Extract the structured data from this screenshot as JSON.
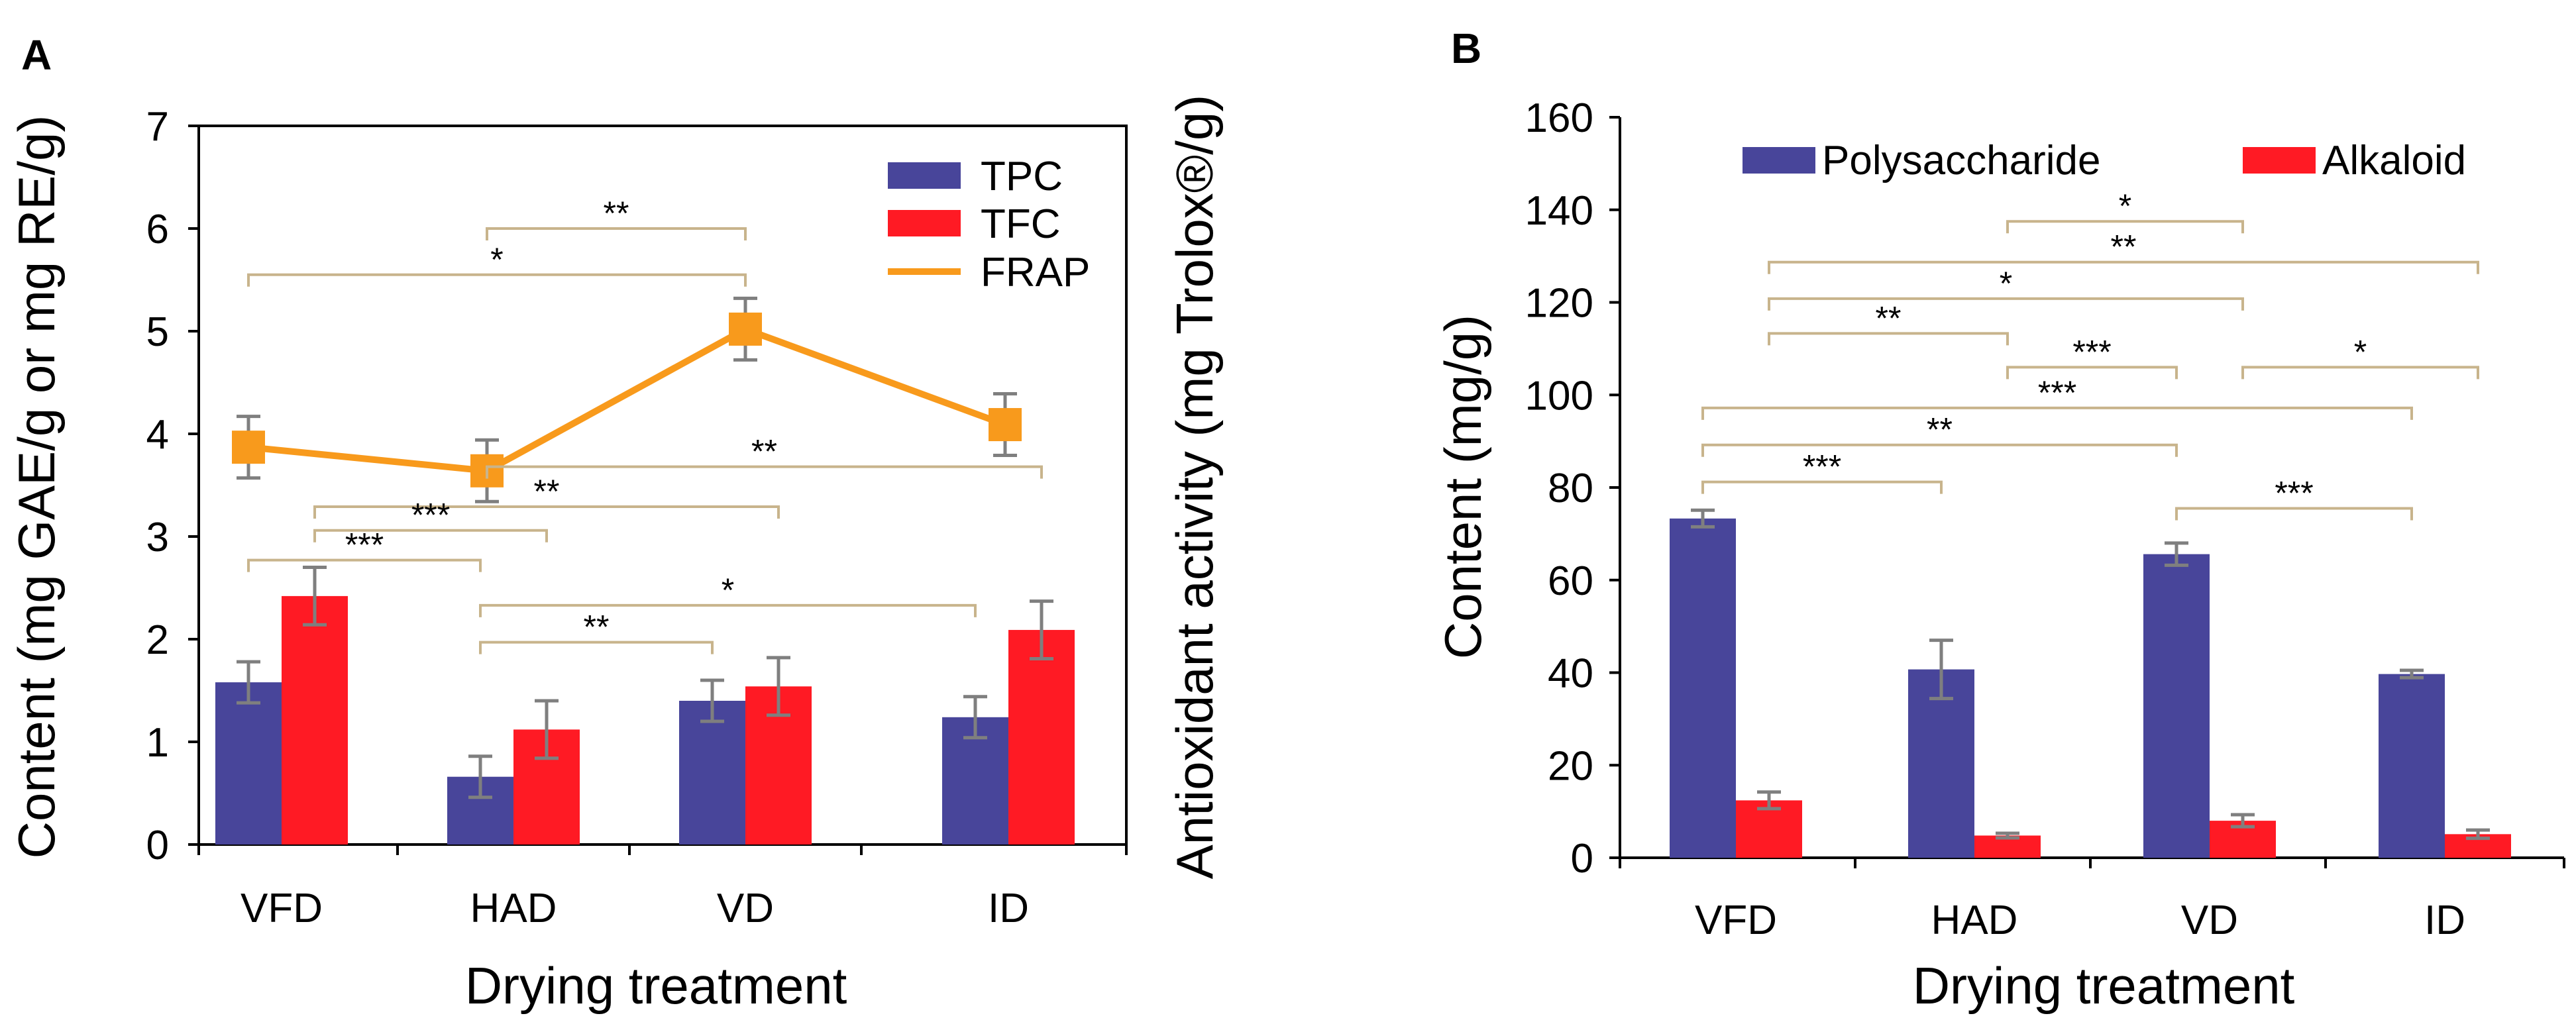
{
  "panel_a_letter": "A",
  "panel_b_letter": "B",
  "chart_data": [
    {
      "type": "bar",
      "panel": "A",
      "categories": [
        "VFD",
        "HAD",
        "VD",
        "ID"
      ],
      "xlabel": "Drying treatment",
      "ylabel": "Content (mg GAE/g or mg RE/g)",
      "y2label": "Antioxidant activity (mg Trolox®/g)",
      "ylim": [
        0,
        7
      ],
      "yticks": [
        "0",
        "1",
        "2",
        "3",
        "4",
        "5",
        "6",
        "7"
      ],
      "series": [
        {
          "name": "TPC",
          "kind": "bar",
          "color": "#48459a",
          "values": [
            1.58,
            0.66,
            1.4,
            1.24
          ],
          "errors": [
            0.2,
            0.2,
            0.2,
            0.2
          ]
        },
        {
          "name": "TFC",
          "kind": "bar",
          "color": "#ff1a24",
          "values": [
            2.42,
            1.12,
            1.54,
            2.09
          ],
          "errors": [
            0.28,
            0.28,
            0.28,
            0.28
          ]
        },
        {
          "name": "FRAP",
          "kind": "line",
          "color": "#f89a1c",
          "values": [
            3.87,
            3.64,
            5.02,
            4.09
          ],
          "errors": [
            0.3,
            0.3,
            0.3,
            0.3
          ]
        }
      ],
      "significance": [
        {
          "label": "**",
          "from": "HAD-FRAP",
          "to": "VD-FRAP",
          "level": 6.0
        },
        {
          "label": "*",
          "from": "VFD-FRAP",
          "to": "VD-FRAP",
          "level": 5.55
        },
        {
          "label": "**",
          "from": "HAD-FRAP",
          "to": "ID-TFC",
          "level": 3.68
        },
        {
          "label": "**",
          "from": "VFD-TFC",
          "to": "VD-TFC",
          "level": 3.29
        },
        {
          "label": "***",
          "from": "VFD-TFC",
          "to": "HAD-TFC",
          "level": 3.06
        },
        {
          "label": "***",
          "from": "VFD-TPC",
          "to": "HAD-TPC",
          "level": 2.77
        },
        {
          "label": "*",
          "from": "HAD-TPC",
          "to": "ID-TPC",
          "level": 2.33
        },
        {
          "label": "**",
          "from": "HAD-TPC",
          "to": "VD-TPC",
          "level": 1.97
        }
      ]
    },
    {
      "type": "bar",
      "panel": "B",
      "categories": [
        "VFD",
        "HAD",
        "VD",
        "ID"
      ],
      "xlabel": "Drying treatment",
      "ylabel": "Content (mg/g)",
      "ylim": [
        0,
        160
      ],
      "yticks": [
        "0",
        "20",
        "40",
        "60",
        "80",
        "100",
        "120",
        "140",
        "160"
      ],
      "series": [
        {
          "name": "Polysaccharide",
          "color": "#48459a",
          "values": [
            73.3,
            40.7,
            65.6,
            39.7
          ],
          "errors": [
            1.8,
            6.3,
            2.4,
            0.8
          ]
        },
        {
          "name": "Alkaloid",
          "color": "#ff1a24",
          "values": [
            12.4,
            4.8,
            8.0,
            5.1
          ],
          "errors": [
            1.8,
            0.5,
            1.3,
            0.9
          ]
        }
      ],
      "significance": [
        {
          "label": "*",
          "from": "HAD-Alkaloid",
          "to": "VD-Alkaloid",
          "level": 137.5
        },
        {
          "label": "**",
          "from": "VFD-Alkaloid",
          "to": "ID-Alkaloid",
          "level": 128.7
        },
        {
          "label": "*",
          "from": "VFD-Alkaloid",
          "to": "VD-Alkaloid",
          "level": 120.8
        },
        {
          "label": "**",
          "from": "VFD-Alkaloid",
          "to": "HAD-Alkaloid",
          "level": 113.3
        },
        {
          "label": "***",
          "from": "HAD-Alkaloid",
          "to": "VD-Polysaccharide",
          "level": 106.0
        },
        {
          "label": "*",
          "from": "VD-Alkaloid",
          "to": "ID-Alkaloid",
          "level": 106.0
        },
        {
          "label": "***",
          "from": "VFD-Polysaccharide",
          "to": "ID-Polysaccharide",
          "level": 97.2
        },
        {
          "label": "**",
          "from": "VFD-Polysaccharide",
          "to": "VD-Polysaccharide",
          "level": 89.2
        },
        {
          "label": "***",
          "from": "VFD-Polysaccharide",
          "to": "HAD-Polysaccharide",
          "level": 81.2
        },
        {
          "label": "***",
          "from": "VD-Polysaccharide",
          "to": "ID-Polysaccharide",
          "level": 75.5
        }
      ]
    }
  ]
}
